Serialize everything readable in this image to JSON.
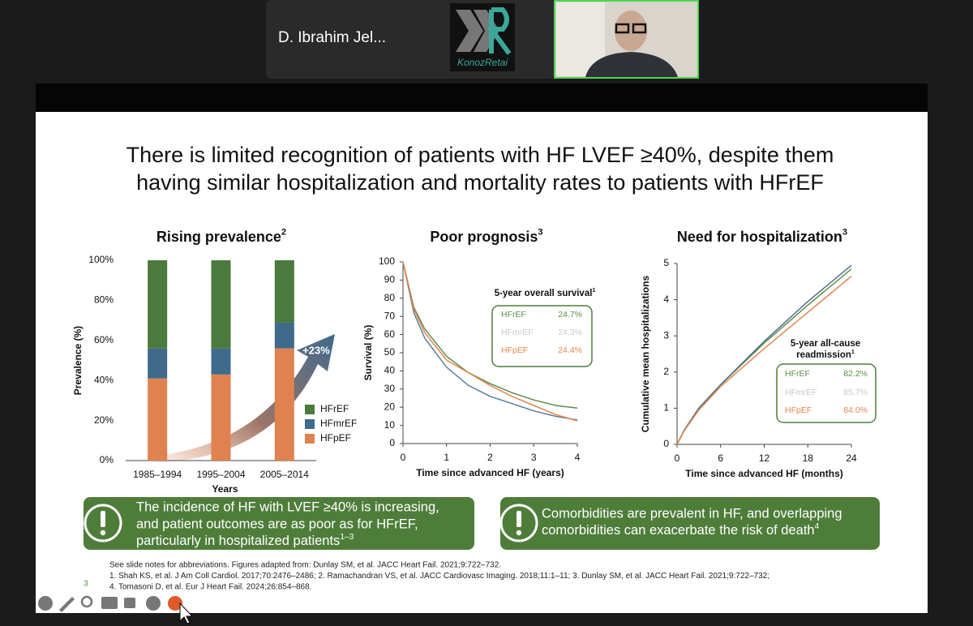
{
  "meeting": {
    "participant_name": "D. Ibrahim Jel...",
    "logo_text": "KonozRetai",
    "slide_number": "3"
  },
  "slide": {
    "title_lines": [
      "There is limited recognition of patients with HF LVEF ≥40%, despite them",
      "having similar hospitalization and mortality rates to patients with HFrEF"
    ],
    "charts": [
      {
        "type": "bar",
        "title": "Rising prevalence",
        "title_sup": "2",
        "categories": [
          "1985–1994",
          "1995–2004",
          "2005–2014"
        ],
        "x_label": "Years",
        "y_label": "Prevalence (%)",
        "ylim": [
          0,
          100
        ],
        "yticks": [
          {
            "value": 0,
            "label": "0%"
          },
          {
            "value": 20,
            "label": "20%"
          },
          {
            "value": 40,
            "label": "40%"
          },
          {
            "value": 60,
            "label": "60%"
          },
          {
            "value": 80,
            "label": "80%"
          },
          {
            "value": 100,
            "label": "100%"
          }
        ],
        "series": [
          {
            "name": "HFpEF",
            "color": "#e0824f",
            "values": [
              41,
              43,
              56
            ]
          },
          {
            "name": "HFmrEF",
            "color": "#3f6a8c",
            "values": [
              15,
              13,
              13
            ]
          },
          {
            "name": "HFrEF",
            "color": "#4a7a3c",
            "values": [
              44,
              44,
              31
            ]
          }
        ],
        "annotation": "+23%"
      },
      {
        "type": "line",
        "title": "Poor prognosis",
        "title_sup": "3",
        "x_label": "Time since advanced HF (years)",
        "y_label": "Survival (%)",
        "x": [
          0,
          0.25,
          0.5,
          1,
          1.5,
          2,
          2.5,
          3,
          3.5,
          4
        ],
        "xlim": [
          0,
          4
        ],
        "xticks": [
          0,
          1,
          2,
          3,
          4
        ],
        "ylim": [
          0,
          100
        ],
        "yticks": [
          0,
          10,
          20,
          30,
          40,
          50,
          60,
          70,
          80,
          90,
          100
        ],
        "series": [
          {
            "name": "HFrEF",
            "color": "#5e8c4c",
            "values": [
              100,
              75,
              63,
              48,
              39,
              33,
              28,
              24,
              21,
              19.5
            ]
          },
          {
            "name": "HFmrEF",
            "color": "#5b7d99",
            "values": [
              100,
              72,
              58,
              42,
              32,
              26,
              22,
              18,
              15,
              13
            ]
          },
          {
            "name": "HFpEF",
            "color": "#e4864f",
            "values": [
              100,
              74,
              61,
              46,
              39,
              32,
              26,
              21,
              16,
              12.5
            ]
          }
        ],
        "inset": {
          "title_lines": [
            "5-year overall survival"
          ],
          "sup": "1",
          "values": [
            "24.7%",
            "24.3%",
            "24.4%"
          ]
        }
      },
      {
        "type": "line",
        "title": "Need for hospitalization",
        "title_sup": "3",
        "x_label": "Time since advanced HF (months)",
        "y_label": "Cumulative mean hospitalizations",
        "x": [
          0,
          1,
          3,
          6,
          12,
          18,
          24
        ],
        "xlim": [
          0,
          24
        ],
        "xticks": [
          0,
          6,
          12,
          18,
          24
        ],
        "ylim": [
          0,
          5
        ],
        "yticks": [
          0,
          1,
          2,
          3,
          4,
          5
        ],
        "series": [
          {
            "name": "HFrEF",
            "color": "#5e8c4c",
            "values": [
              0,
              0.4,
              1.0,
              1.65,
              2.8,
              3.85,
              4.85
            ]
          },
          {
            "name": "HFmrEF",
            "color": "#4f6f8c",
            "values": [
              0,
              0.4,
              1.0,
              1.65,
              2.85,
              3.95,
              4.95
            ]
          },
          {
            "name": "HFpEF",
            "color": "#e4864f",
            "values": [
              0,
              0.38,
              0.95,
              1.6,
              2.65,
              3.65,
              4.65
            ]
          }
        ],
        "inset": {
          "title_lines": [
            "5-year all-cause",
            "readmission"
          ],
          "sup": "1",
          "values": [
            "82.2%",
            "85.7%",
            "84.0%"
          ]
        }
      }
    ],
    "banners": [
      {
        "lines": [
          "The incidence of HF with LVEF ≥40% is increasing,",
          "and patient outcomes are as poor as for HFrEF,",
          "particularly in hospitalized patients"
        ],
        "sup": "1–3"
      },
      {
        "lines": [
          "Comorbidities are prevalent in HF, and overlapping",
          "comorbidities can exacerbate the risk of death"
        ],
        "sup": "4"
      }
    ],
    "footnotes": [
      "See slide notes for abbreviations. Figures adapted from: Dunlay SM, et al. JACC Heart Fail. 2021;9:722–732.",
      "1. Shah KS, et al. J Am Coll Cardiol. 2017;70:2476–2486; 2. Ramachandran VS, et al. JACC Cardiovasc Imaging. 2018;11:1–11; 3. Dunlay SM, et al. JACC Heart Fail. 2021;9:722–732;",
      "4. Tomasoni D, et al. Eur J Heart Fail. 2024;26:854–868."
    ]
  }
}
